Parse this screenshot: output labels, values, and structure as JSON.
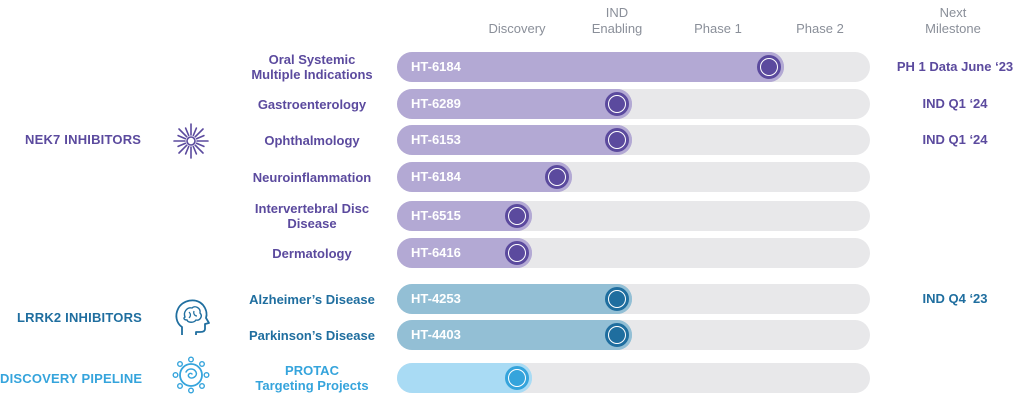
{
  "colors": {
    "nek7": "#5b4a9e",
    "nek7_fill": "#b3a9d4",
    "lrrk2": "#1f6e9f",
    "lrrk2_fill": "#93bfd5",
    "discovery": "#35a4dc",
    "discovery_fill": "#a9dbf4",
    "track": "#e8e8ea",
    "header": "#8a8f99"
  },
  "chart_data": {
    "type": "bar",
    "stages": [
      "Discovery",
      "IND\nEnabling",
      "Phase 1",
      "Phase 2"
    ],
    "milestone_header": "Next\nMilestone",
    "groups": [
      {
        "label": "NEK7 INHIBITORS",
        "icon": "starburst-icon",
        "color_key": "nek7"
      },
      {
        "label": "LRRK2 INHIBITORS",
        "icon": "brain-head-icon",
        "color_key": "lrrk2"
      },
      {
        "label": "DISCOVERY PIPELINE",
        "icon": "molecule-cluster-icon",
        "color_key": "discovery"
      }
    ],
    "rows": [
      {
        "group": 0,
        "indication": "Oral Systemic\nMultiple Indications",
        "code": "HT-6184",
        "progress": 3.5,
        "milestone": "PH 1 Data June ‘23"
      },
      {
        "group": 0,
        "indication": "Gastroenterology",
        "code": "HT-6289",
        "progress": 2.0,
        "milestone": "IND Q1 ‘24"
      },
      {
        "group": 0,
        "indication": "Ophthalmology",
        "code": "HT-6153",
        "progress": 2.0,
        "milestone": "IND Q1 ‘24"
      },
      {
        "group": 0,
        "indication": "Neuroinflammation",
        "code": "HT-6184",
        "progress": 1.4,
        "milestone": ""
      },
      {
        "group": 0,
        "indication": "Intervertebral Disc\nDisease",
        "code": "HT-6515",
        "progress": 1.0,
        "milestone": ""
      },
      {
        "group": 0,
        "indication": "Dermatology",
        "code": "HT-6416",
        "progress": 1.0,
        "milestone": ""
      },
      {
        "group": 1,
        "indication": "Alzheimer’s Disease",
        "code": "HT-4253",
        "progress": 2.0,
        "milestone": "IND Q4 ‘23"
      },
      {
        "group": 1,
        "indication": "Parkinson’s Disease",
        "code": "HT-4403",
        "progress": 2.0,
        "milestone": ""
      },
      {
        "group": 2,
        "indication": "PROTAC\nTargeting Projects",
        "code": "",
        "progress": 1.0,
        "milestone": ""
      }
    ]
  }
}
